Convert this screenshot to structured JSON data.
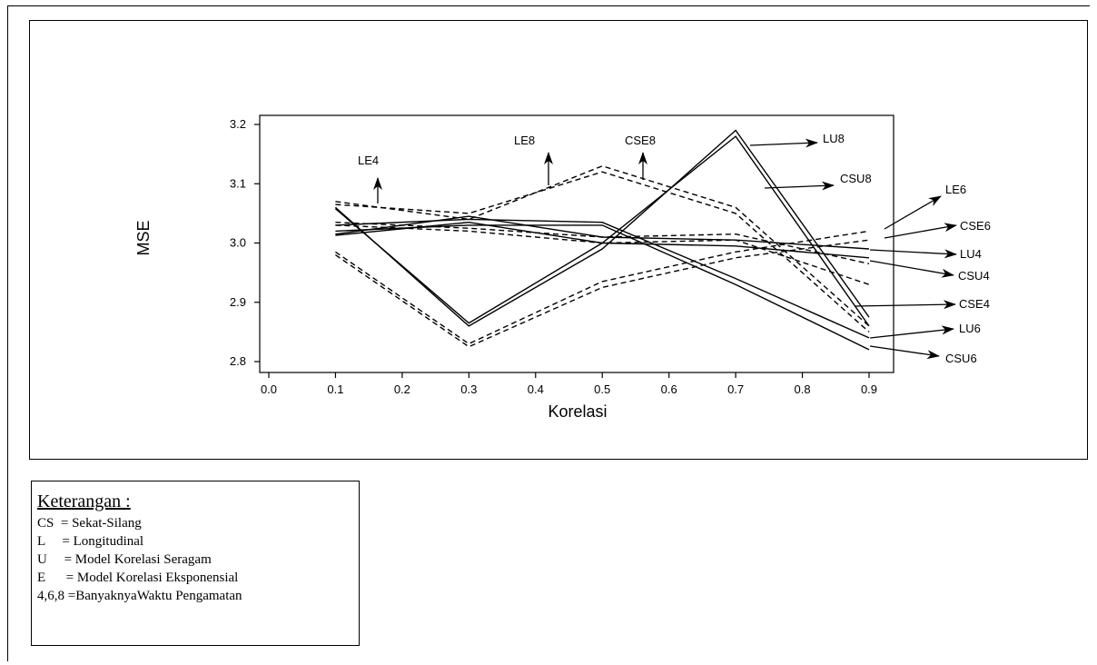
{
  "chart_data": {
    "type": "line",
    "xlabel": "Korelasi",
    "ylabel": "MSE",
    "xlim": [
      0.0,
      0.9
    ],
    "ylim": [
      2.8,
      3.2
    ],
    "x_ticks": [
      "0.0",
      "0.1",
      "0.2",
      "0.3",
      "0.4",
      "0.5",
      "0.6",
      "0.7",
      "0.8",
      "0.9"
    ],
    "y_ticks": [
      "2.8",
      "2.9",
      "3.0",
      "3.1",
      "3.2"
    ],
    "x": [
      0.1,
      0.3,
      0.5,
      0.7,
      0.9
    ],
    "series": [
      {
        "name": "LU8",
        "style": "solid",
        "values": [
          3.06,
          2.86,
          2.99,
          3.19,
          2.875
        ]
      },
      {
        "name": "CSU8",
        "style": "solid",
        "values": [
          3.058,
          2.865,
          3.0,
          3.18,
          2.86
        ]
      },
      {
        "name": "LU4",
        "style": "solid",
        "values": [
          3.015,
          3.045,
          3.01,
          3.005,
          2.99
        ]
      },
      {
        "name": "CSU4",
        "style": "solid",
        "values": [
          3.013,
          3.035,
          3.0,
          2.995,
          2.975
        ]
      },
      {
        "name": "LU6",
        "style": "solid",
        "values": [
          3.03,
          3.04,
          3.035,
          2.94,
          2.84
        ]
      },
      {
        "name": "CSU6",
        "style": "solid",
        "values": [
          3.02,
          3.03,
          3.03,
          2.93,
          2.82
        ]
      },
      {
        "name": "LE8",
        "style": "dashed",
        "values": [
          3.07,
          3.04,
          3.13,
          3.06,
          2.86
        ]
      },
      {
        "name": "CSE8",
        "style": "dashed",
        "values": [
          3.065,
          3.05,
          3.12,
          3.05,
          2.85
        ]
      },
      {
        "name": "LE6",
        "style": "dashed",
        "values": [
          2.985,
          2.83,
          2.935,
          2.985,
          3.02
        ]
      },
      {
        "name": "CSE6",
        "style": "dashed",
        "values": [
          2.98,
          2.825,
          2.925,
          2.975,
          3.005
        ]
      },
      {
        "name": "LE4",
        "style": "dashed",
        "values": [
          3.035,
          3.025,
          3.01,
          3.015,
          2.965
        ]
      },
      {
        "name": "CSE4",
        "style": "dashed",
        "values": [
          3.03,
          3.02,
          3.0,
          3.005,
          2.93
        ]
      }
    ],
    "annotations": [
      "LE4",
      "LE8",
      "CSE8",
      "LU8",
      "CSU8",
      "LE6",
      "CSE6",
      "LU4",
      "CSU4",
      "CSE4",
      "LU6",
      "CSU6"
    ]
  },
  "legend": {
    "title": "Keterangan :",
    "items": [
      {
        "key": "CS  ",
        "desc": "= Sekat-Silang"
      },
      {
        "key": "L     ",
        "desc": "= Longitudinal"
      },
      {
        "key": "U     ",
        "desc": "= Model Korelasi Seragam"
      },
      {
        "key": "E      ",
        "desc": "= Model Korelasi Eksponensial"
      },
      {
        "key": "4,6,8 ",
        "desc": "=BanyaknyaWaktu Pengamatan"
      }
    ]
  }
}
